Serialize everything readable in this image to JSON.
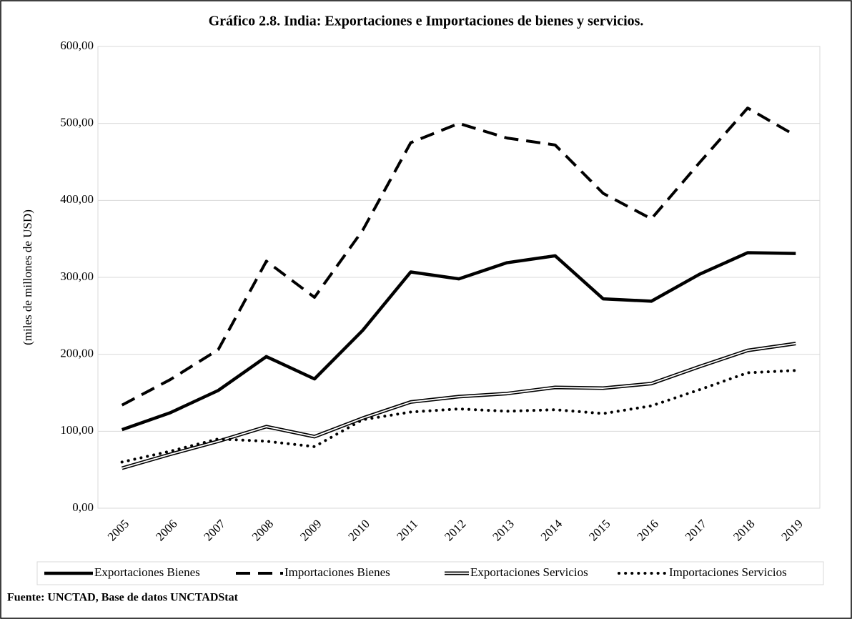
{
  "chart_data": {
    "type": "line",
    "title": "Gráfico 2.8. India: Exportaciones  e Importaciones  de bienes y servicios.",
    "y_label": "(miles de millones de USD)",
    "source": "Fuente: UNCTAD,  Base de datos UNCTADStat",
    "categories": [
      "2005",
      "2006",
      "2007",
      "2008",
      "2009",
      "2010",
      "2011",
      "2012",
      "2013",
      "2014",
      "2015",
      "2016",
      "2017",
      "2018",
      "2019"
    ],
    "series": [
      {
        "name": "Exportaciones Bienes",
        "color": "#000000",
        "style": "solid",
        "values": [
          102,
          124,
          153,
          197,
          168,
          231,
          307,
          298,
          319,
          328,
          272,
          269,
          304,
          332,
          331
        ]
      },
      {
        "name": "Importaciones Bienes",
        "color": "#000000",
        "style": "dashed",
        "values": [
          134,
          167,
          206,
          321,
          274,
          361,
          475,
          500,
          481,
          472,
          409,
          376,
          449,
          520,
          484
        ]
      },
      {
        "name": "Exportaciones Servicios",
        "color": "#000000",
        "style": "double",
        "values": [
          52,
          70,
          87,
          106,
          93,
          117,
          138,
          145,
          149,
          157,
          156,
          162,
          184,
          205,
          214
        ]
      },
      {
        "name": "Importaciones Servicios",
        "color": "#000000",
        "style": "dotted",
        "values": [
          60,
          74,
          90,
          87,
          80,
          115,
          125,
          129,
          126,
          128,
          123,
          133,
          154,
          176,
          179
        ]
      }
    ],
    "ylim": [
      0,
      600
    ],
    "yticks": [
      {
        "value": 0,
        "label": "0,00"
      },
      {
        "value": 100,
        "label": "100,00"
      },
      {
        "value": 200,
        "label": "200,00"
      },
      {
        "value": 300,
        "label": "300,00"
      },
      {
        "value": 400,
        "label": "400,00"
      },
      {
        "value": 500,
        "label": "500,00"
      },
      {
        "value": 600,
        "label": "600,00"
      }
    ],
    "grid": true,
    "legend": "bottom"
  }
}
